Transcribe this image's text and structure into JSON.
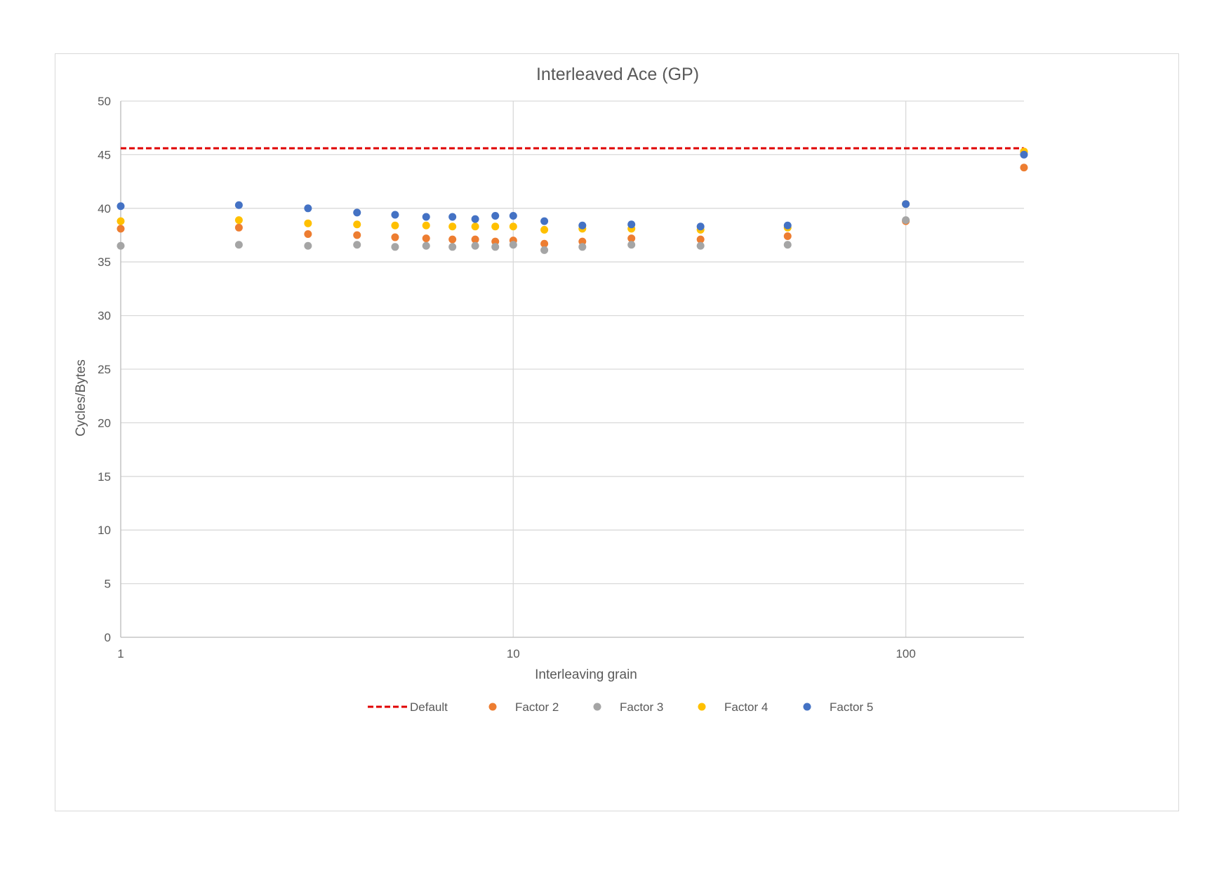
{
  "chart_data": {
    "type": "scatter",
    "title": "Interleaved Ace (GP)",
    "xlabel": "Interleaving grain",
    "ylabel": "Cycles/Bytes",
    "x_scale": "log",
    "xlim": [
      1,
      200
    ],
    "ylim": [
      0,
      50
    ],
    "x_ticks": [
      1,
      10,
      100
    ],
    "y_ticks": [
      0,
      5,
      10,
      15,
      20,
      25,
      30,
      35,
      40,
      45,
      50
    ],
    "grid": true,
    "legend_position": "bottom",
    "x": [
      1,
      2,
      3,
      4,
      5,
      6,
      7,
      8,
      9,
      10,
      12,
      15,
      20,
      30,
      50,
      100,
      200
    ],
    "reference_line": {
      "name": "Default",
      "value": 45.6,
      "color": "#e00000",
      "style": "dashed"
    },
    "series": [
      {
        "name": "Factor 2",
        "color": "#ed7d31",
        "values": [
          38.1,
          38.2,
          37.6,
          37.5,
          37.3,
          37.2,
          37.1,
          37.1,
          36.9,
          37.0,
          36.7,
          36.9,
          37.2,
          37.1,
          37.4,
          38.8,
          43.8
        ]
      },
      {
        "name": "Factor 3",
        "color": "#a5a5a5",
        "values": [
          36.5,
          36.6,
          36.5,
          36.6,
          36.4,
          36.5,
          36.4,
          36.5,
          36.4,
          36.6,
          36.1,
          36.4,
          36.6,
          36.5,
          36.6,
          38.9,
          45.2
        ]
      },
      {
        "name": "Factor 4",
        "color": "#ffc000",
        "values": [
          38.8,
          38.9,
          38.6,
          38.5,
          38.4,
          38.4,
          38.3,
          38.3,
          38.3,
          38.3,
          38.0,
          38.1,
          38.1,
          38.0,
          38.2,
          40.4,
          45.3
        ]
      },
      {
        "name": "Factor 5",
        "color": "#4472c4",
        "values": [
          40.2,
          40.3,
          40.0,
          39.6,
          39.4,
          39.2,
          39.2,
          39.0,
          39.3,
          39.3,
          38.8,
          38.4,
          38.5,
          38.3,
          38.4,
          40.4,
          45.0
        ]
      }
    ]
  }
}
